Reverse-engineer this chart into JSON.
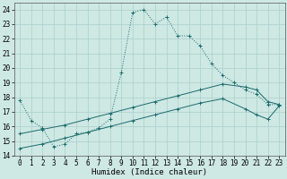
{
  "title": "",
  "xlabel": "Humidex (Indice chaleur)",
  "xlim": [
    -0.5,
    23.5
  ],
  "ylim": [
    14,
    24.5
  ],
  "yticks": [
    14,
    15,
    16,
    17,
    18,
    19,
    20,
    21,
    22,
    23,
    24
  ],
  "xticks": [
    0,
    1,
    2,
    3,
    4,
    5,
    6,
    7,
    8,
    9,
    10,
    11,
    12,
    13,
    14,
    15,
    16,
    17,
    18,
    19,
    20,
    21,
    22,
    23
  ],
  "background_color": "#cee8e4",
  "grid_color": "#aacfcb",
  "line_color": "#1a6b6b",
  "line1_x": [
    0,
    1,
    2,
    3,
    4,
    5,
    6,
    7,
    8,
    9,
    10,
    11,
    12,
    13,
    14,
    15,
    16,
    17,
    18,
    19,
    20,
    21,
    22,
    23
  ],
  "line1_y": [
    17.8,
    16.4,
    15.9,
    14.6,
    14.8,
    15.5,
    15.6,
    15.9,
    16.5,
    19.7,
    23.8,
    24.0,
    23.0,
    23.5,
    22.2,
    22.2,
    21.5,
    20.3,
    19.5,
    19.0,
    18.5,
    18.2,
    17.5,
    17.5
  ],
  "line2_x": [
    0,
    2,
    4,
    6,
    8,
    10,
    12,
    14,
    16,
    18,
    20,
    21,
    22,
    23
  ],
  "line2_y": [
    15.5,
    15.8,
    16.1,
    16.5,
    16.9,
    17.3,
    17.7,
    18.1,
    18.5,
    18.9,
    18.7,
    18.5,
    17.7,
    17.5
  ],
  "line3_x": [
    0,
    2,
    4,
    6,
    8,
    10,
    12,
    14,
    16,
    18,
    20,
    21,
    22,
    23
  ],
  "line3_y": [
    14.5,
    14.8,
    15.2,
    15.6,
    16.0,
    16.4,
    16.8,
    17.2,
    17.6,
    17.9,
    17.2,
    16.8,
    16.5,
    17.4
  ],
  "tick_fontsize": 5.5,
  "xlabel_fontsize": 6.5
}
